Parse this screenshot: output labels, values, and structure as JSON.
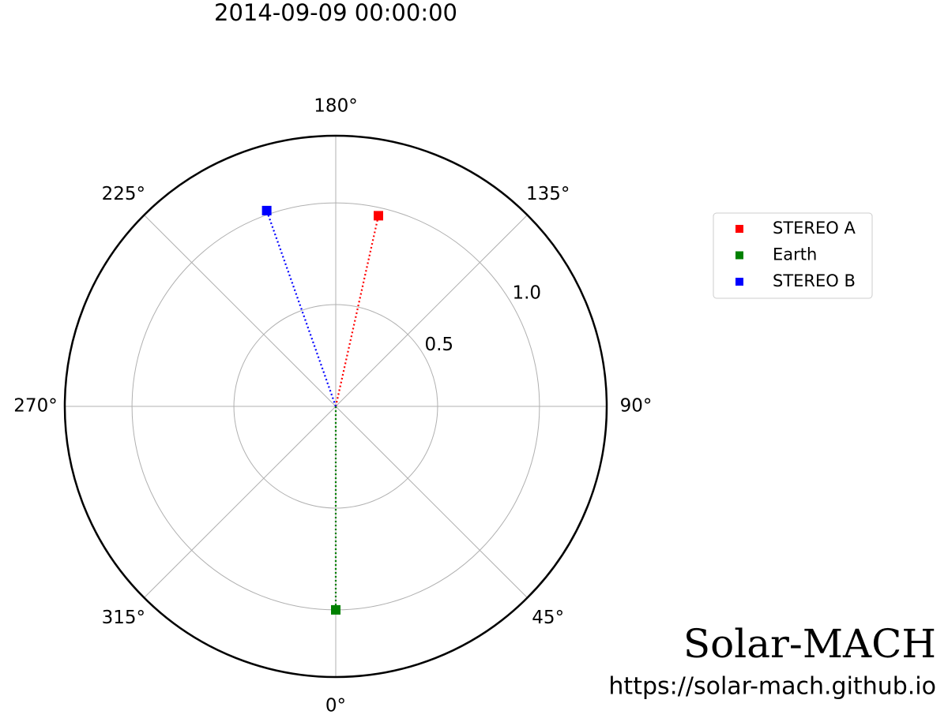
{
  "chart_data": {
    "type": "polar",
    "title": "2014-09-09 00:00:00",
    "series": [
      {
        "name": "STEREO A",
        "color": "#ff0000",
        "theta": [
          167.4
        ],
        "values": [
          0.96
        ]
      },
      {
        "name": "Earth",
        "color": "#008000",
        "theta": [
          0
        ],
        "values": [
          1.0
        ]
      },
      {
        "name": "STEREO B",
        "color": "#0000ff",
        "theta": [
          199.4
        ],
        "values": [
          1.02
        ]
      }
    ],
    "ylim": [
      0,
      1.33
    ],
    "yticks": [
      0.5,
      {
        "value": 1,
        "label": "1.0"
      }
    ],
    "xticks": [
      {
        "value": 0,
        "label": "0°"
      },
      {
        "value": 45,
        "label": "45°"
      },
      {
        "value": 90,
        "label": "90°"
      },
      {
        "value": 135,
        "label": "135°"
      },
      {
        "value": 180,
        "label": "180°"
      },
      {
        "value": 225,
        "label": "225°"
      },
      {
        "value": 270,
        "label": "270°"
      },
      {
        "value": 315,
        "label": "315°"
      }
    ],
    "grid": true,
    "legend": "outside-right",
    "annotations": [
      "Solar-MACH",
      "https://solar-mach.github.io"
    ]
  }
}
